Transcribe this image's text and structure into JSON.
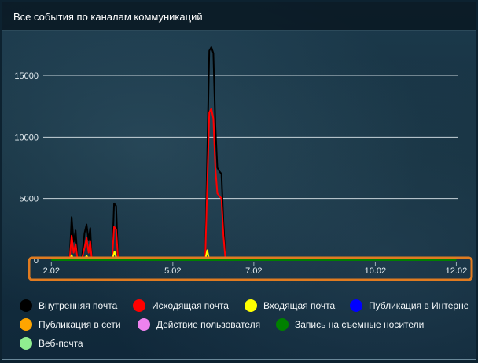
{
  "widget": {
    "title": "Все события по каналам коммуникаций"
  },
  "chart_data": {
    "type": "line",
    "title": "Все события по каналам коммуникаций",
    "xlabel": "",
    "ylabel": "",
    "grid": true,
    "x_tick_labels": [
      "2.02",
      "5.02",
      "7.02",
      "10.02",
      "12.02"
    ],
    "x_ticks_days": [
      2,
      5,
      7,
      10,
      12
    ],
    "y_ticks": [
      0,
      5000,
      10000,
      15000
    ],
    "ylim": [
      0,
      18000
    ],
    "xlim_days": [
      1.8,
      12.05
    ],
    "legend_position": "bottom",
    "series": [
      {
        "name": "Внутренняя почта",
        "color": "#000000",
        "points": [
          [
            2.2,
            0
          ],
          [
            2.45,
            0
          ],
          [
            2.5,
            3500
          ],
          [
            2.55,
            1500
          ],
          [
            2.6,
            2400
          ],
          [
            2.65,
            0
          ],
          [
            2.75,
            0
          ],
          [
            2.82,
            2200
          ],
          [
            2.87,
            2900
          ],
          [
            2.92,
            1600
          ],
          [
            2.96,
            2600
          ],
          [
            3.0,
            0
          ],
          [
            3.5,
            0
          ],
          [
            3.55,
            4600
          ],
          [
            3.6,
            4400
          ],
          [
            3.65,
            0
          ],
          [
            5.8,
            0
          ],
          [
            5.9,
            17000
          ],
          [
            5.95,
            17300
          ],
          [
            6.0,
            16800
          ],
          [
            6.05,
            11000
          ],
          [
            6.1,
            7500
          ],
          [
            6.15,
            7200
          ],
          [
            6.2,
            7000
          ],
          [
            6.25,
            3000
          ],
          [
            6.3,
            0
          ]
        ]
      },
      {
        "name": "Исходящая почта",
        "color": "#ff0000",
        "points": [
          [
            2.2,
            0
          ],
          [
            2.45,
            0
          ],
          [
            2.5,
            2000
          ],
          [
            2.55,
            600
          ],
          [
            2.6,
            1300
          ],
          [
            2.65,
            0
          ],
          [
            2.75,
            0
          ],
          [
            2.82,
            1000
          ],
          [
            2.87,
            1800
          ],
          [
            2.92,
            600
          ],
          [
            2.96,
            1500
          ],
          [
            3.0,
            0
          ],
          [
            3.5,
            0
          ],
          [
            3.55,
            2700
          ],
          [
            3.6,
            2500
          ],
          [
            3.65,
            0
          ],
          [
            5.8,
            0
          ],
          [
            5.9,
            12000
          ],
          [
            5.95,
            12300
          ],
          [
            6.0,
            11500
          ],
          [
            6.05,
            7500
          ],
          [
            6.1,
            5400
          ],
          [
            6.15,
            5200
          ],
          [
            6.2,
            5000
          ],
          [
            6.25,
            2000
          ],
          [
            6.3,
            0
          ]
        ]
      },
      {
        "name": "Входящая почта",
        "color": "#ffff00",
        "points": [
          [
            2.45,
            0
          ],
          [
            2.5,
            400
          ],
          [
            2.55,
            0
          ],
          [
            2.8,
            0
          ],
          [
            2.87,
            350
          ],
          [
            2.94,
            0
          ],
          [
            3.5,
            0
          ],
          [
            3.56,
            700
          ],
          [
            3.62,
            0
          ],
          [
            5.8,
            0
          ],
          [
            5.85,
            800
          ],
          [
            5.9,
            0
          ]
        ]
      },
      {
        "name": "Публикация в Интернете",
        "color": "#0000ff",
        "points": []
      },
      {
        "name": "Публикация в сети",
        "color": "#ffa500",
        "points": []
      },
      {
        "name": "Действие пользователя",
        "color": "#ee82ee",
        "points": []
      },
      {
        "name": "Запись на съемные носители",
        "color": "#008000",
        "points": [
          [
            2.0,
            0
          ],
          [
            12.0,
            0
          ]
        ]
      },
      {
        "name": "Веб-почта",
        "color": "#90ee90",
        "points": []
      }
    ]
  },
  "highlight": {
    "color": "#e07b20"
  },
  "legend": {
    "items": [
      {
        "label": "Внутренняя почта",
        "color": "#000000"
      },
      {
        "label": "Исходящая почта",
        "color": "#ff0000"
      },
      {
        "label": "Входящая почта",
        "color": "#ffff00"
      },
      {
        "label": "Публикация в Интерне",
        "color": "#0000ff"
      },
      {
        "label": "Публикация в сети",
        "color": "#ffa500"
      },
      {
        "label": "Действие пользователя",
        "color": "#ee82ee"
      },
      {
        "label": "Запись на съемные носители",
        "color": "#008000"
      },
      {
        "label": "Веб-почта",
        "color": "#90ee90"
      }
    ]
  }
}
